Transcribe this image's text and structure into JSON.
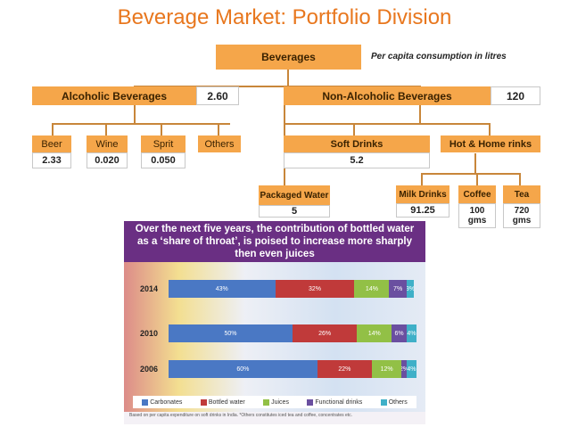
{
  "title": "Beverage Market: Portfolio Division",
  "note": "Per capita consumption in litres",
  "root": {
    "label": "Beverages"
  },
  "alcoholic": {
    "label": "Alcoholic Beverages",
    "value": "2.60"
  },
  "non_alcoholic": {
    "label": "Non-Alcoholic Beverages",
    "value": "120"
  },
  "alcoholic_children": [
    {
      "label": "Beer",
      "value": "2.33"
    },
    {
      "label": "Wine",
      "value": "0.020"
    },
    {
      "label": "Sprit",
      "value": "0.050"
    },
    {
      "label": "Others",
      "value": ""
    }
  ],
  "soft_drinks": {
    "label": "Soft Drinks",
    "value": "5.2"
  },
  "hot_home": {
    "label": "Hot & Home rinks"
  },
  "packaged_water": {
    "label": "Packaged Water",
    "value": "5"
  },
  "hot_children": [
    {
      "label": "Milk Drinks",
      "value": "91.25"
    },
    {
      "label": "Coffee",
      "value": "100 gms"
    },
    {
      "label": "Tea",
      "value": "720 gms"
    }
  ],
  "infographic": {
    "headline": "Over the next five years, the contribution of bottled water as a ‘share of throat’, is poised to increase more sharply then even juices",
    "footnote": "Based on per capita expenditure on soft drinks in India. *Others constitutes iced tea and coffee, concentrates etc."
  },
  "chart_data": {
    "type": "bar",
    "orientation": "horizontal",
    "stacked": true,
    "categories": [
      "2014",
      "2010",
      "2006"
    ],
    "series": [
      {
        "name": "Carbonates",
        "color": "#4a78c4",
        "values": [
          43,
          50,
          60
        ],
        "labels": [
          "43%",
          "50%",
          "60%"
        ]
      },
      {
        "name": "Bottled water",
        "color": "#c03a3a",
        "values": [
          32,
          26,
          22
        ],
        "labels": [
          "32%",
          "26%",
          "22%"
        ]
      },
      {
        "name": "Juices",
        "color": "#92c046",
        "values": [
          14,
          14,
          12
        ],
        "labels": [
          "14%",
          "14%",
          "12%"
        ]
      },
      {
        "name": "Functional drinks",
        "color": "#6a4fa0",
        "values": [
          7,
          6,
          2
        ],
        "labels": [
          "7%",
          "6%",
          "2%"
        ]
      },
      {
        "name": "Others",
        "color": "#3fb0c8",
        "values": [
          3,
          4,
          4
        ],
        "labels": [
          "3%",
          "4%",
          "4%"
        ]
      }
    ],
    "xlim": [
      0,
      100
    ]
  }
}
